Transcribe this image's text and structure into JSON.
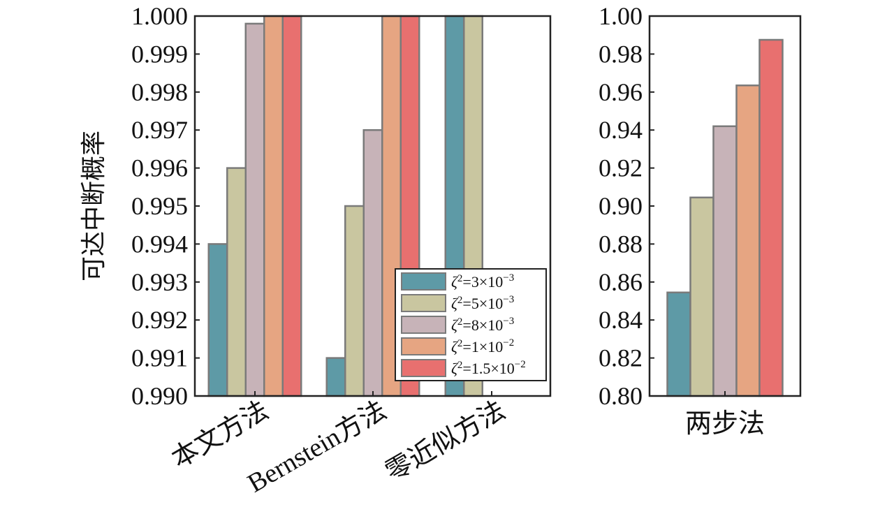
{
  "chart_data": [
    {
      "type": "bar",
      "ylabel": "可达中断概率",
      "ylim": [
        0.99,
        1.0
      ],
      "yticks": [
        "0.990",
        "0.991",
        "0.992",
        "0.993",
        "0.994",
        "0.995",
        "0.996",
        "0.997",
        "0.998",
        "0.999",
        "1.000"
      ],
      "categories": [
        "本文方法",
        "Bernstein方法",
        "零近似方法"
      ],
      "series": [
        {
          "name": "ζ²=3×10⁻³",
          "values": [
            0.994,
            0.991,
            1.0
          ]
        },
        {
          "name": "ζ²=5×10⁻³",
          "values": [
            0.996,
            0.995,
            1.0
          ]
        },
        {
          "name": "ζ²=8×10⁻³",
          "values": [
            0.9998,
            0.997,
            null
          ]
        },
        {
          "name": "ζ²=1×10⁻²",
          "values": [
            1.0,
            1.0,
            null
          ]
        },
        {
          "name": "ζ²=1.5×10⁻²",
          "values": [
            1.0,
            1.0,
            null
          ]
        }
      ],
      "legend_position": "lower-right",
      "grid": false
    },
    {
      "type": "bar",
      "ylim": [
        0.8,
        1.0
      ],
      "yticks": [
        "0.80",
        "0.82",
        "0.84",
        "0.86",
        "0.88",
        "0.90",
        "0.92",
        "0.94",
        "0.96",
        "0.98",
        "1.00"
      ],
      "categories": [
        "两步法"
      ],
      "series": [
        {
          "name": "ζ²=3×10⁻³",
          "values": [
            0.8545
          ]
        },
        {
          "name": "ζ²=5×10⁻³",
          "values": [
            0.9045
          ]
        },
        {
          "name": "ζ²=8×10⁻³",
          "values": [
            0.942
          ]
        },
        {
          "name": "ζ²=1×10⁻²",
          "values": [
            0.9635
          ]
        },
        {
          "name": "ζ²=1.5×10⁻²",
          "values": [
            0.9875
          ]
        }
      ],
      "grid": false
    }
  ],
  "colors": [
    "#5e9aa6",
    "#c9c6a0",
    "#c7b3b8",
    "#e6a582",
    "#e8706f"
  ],
  "bar_edge_color": "#7a7a7a",
  "legend": [
    {
      "symbol": "ζ",
      "sup": "2",
      "text": "=3×10",
      "exp": "−3"
    },
    {
      "symbol": "ζ",
      "sup": "2",
      "text": "=5×10",
      "exp": "−3"
    },
    {
      "symbol": "ζ",
      "sup": "2",
      "text": "=8×10",
      "exp": "−3"
    },
    {
      "symbol": "ζ",
      "sup": "2",
      "text": "=1×10",
      "exp": "−2"
    },
    {
      "symbol": "ζ",
      "sup": "2",
      "text": "=1.5×10",
      "exp": "−2"
    }
  ]
}
